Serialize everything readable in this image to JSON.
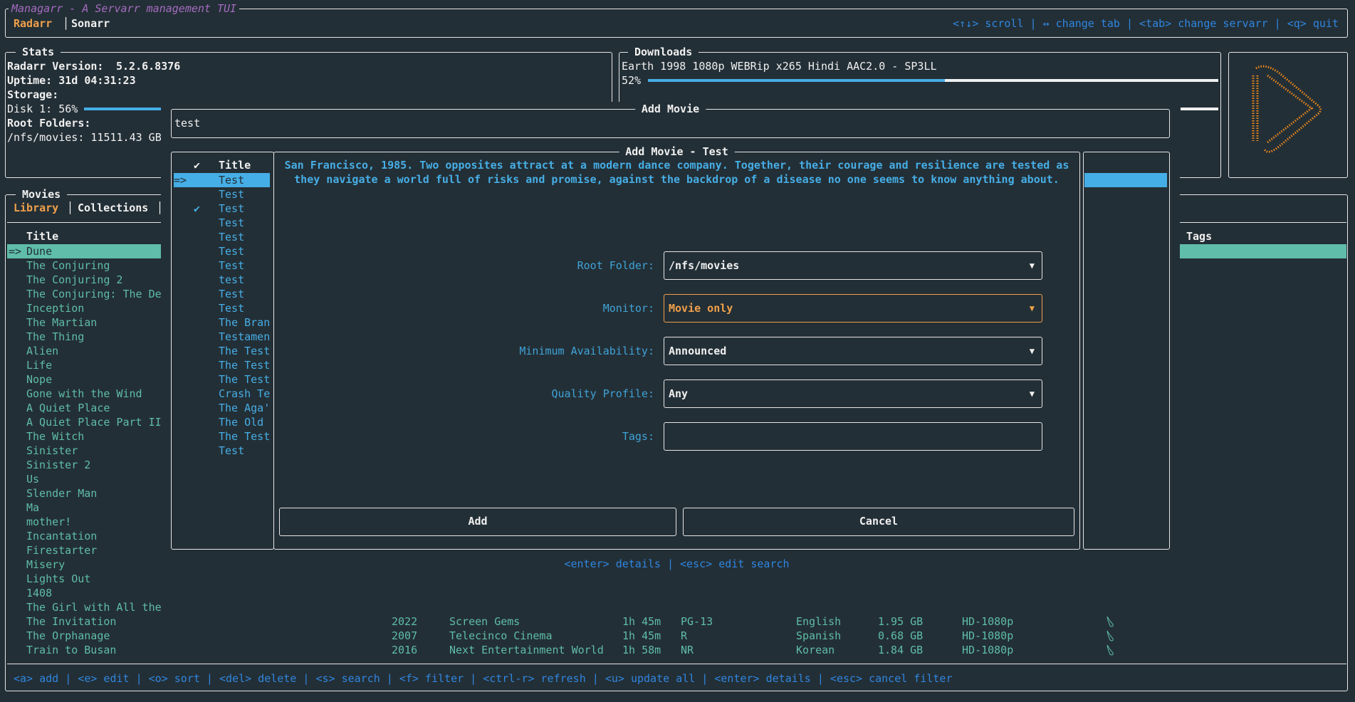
{
  "app": {
    "title": "Managarr - A Servarr management TUI",
    "tabs": [
      "Radarr",
      "Sonarr"
    ],
    "active_tab": "Radarr",
    "help": "<↑↓> scroll | ↔ change tab | <tab> change servarr | <q> quit"
  },
  "colors": {
    "accent": "#f0a04b",
    "teal": "#5fbda9",
    "blue": "#46aee6",
    "title": "#a56cc1",
    "background": "#232f36"
  },
  "stats": {
    "title": "Stats",
    "version_label": "Radarr Version:",
    "version": "5.2.6.8376",
    "uptime": "Uptime: 31d 04:31:23",
    "storage_label": "Storage:",
    "disk": "Disk 1: 56%",
    "disk_percent": 56,
    "root_folders_label": "Root Folders:",
    "root_folder": "/nfs/movies: 11511.43 GB"
  },
  "downloads": {
    "title": "Downloads",
    "items": [
      {
        "name": "Earth 1998 1080p WEBRip x265 Hindi AAC2.0 - SP3LL",
        "percent_label": "52%",
        "percent": 52
      }
    ]
  },
  "movies": {
    "title": "Movies",
    "tabs": [
      "Library",
      "Collections"
    ],
    "active_tab": "Library",
    "columns": {
      "title": "Title",
      "tags": "Tags"
    },
    "selected_marker": "=>",
    "titles": [
      "Dune",
      "The Conjuring",
      "The Conjuring 2",
      "The Conjuring: The De",
      "Inception",
      "The Martian",
      "The Thing",
      "Alien",
      "Life",
      "Nope",
      "Gone with the Wind",
      "A Quiet Place",
      "A Quiet Place Part II",
      "The Witch",
      "Sinister",
      "Sinister 2",
      "Us",
      "Slender Man",
      "Ma",
      "mother!",
      "Incantation",
      "Firestarter",
      "Misery",
      "Lights Out",
      "1408",
      "The Girl with All the",
      "The Invitation",
      "The Orphanage",
      "Train to Busan"
    ],
    "visible_details": [
      {
        "year": "2022",
        "studio": "Screen Gems",
        "runtime": "1h 45m",
        "rating": "PG-13",
        "language": "English",
        "size": "1.95 GB",
        "quality": "HD-1080p",
        "icon": "bookmark-icon"
      },
      {
        "year": "2007",
        "studio": "Telecinco Cinema",
        "runtime": "1h 45m",
        "rating": "R",
        "language": "Spanish",
        "size": "0.68 GB",
        "quality": "HD-1080p",
        "icon": "bookmark-icon"
      },
      {
        "year": "2016",
        "studio": "Next Entertainment World",
        "runtime": "1h 58m",
        "rating": "NR",
        "language": "Korean",
        "size": "1.84 GB",
        "quality": "HD-1080p",
        "icon": "bookmark-icon"
      }
    ],
    "help": "<a> add | <e> edit | <o> sort | <del> delete | <s> search | <f> filter | <ctrl-r> refresh | <u> update all | <enter> details | <esc> cancel filter"
  },
  "search": {
    "title": "Add Movie",
    "value": "test",
    "columns": {
      "check": "✔",
      "title": "Title"
    },
    "selected_marker": "=>",
    "results": [
      {
        "title": "Test",
        "added": false
      },
      {
        "title": "Test",
        "added": false
      },
      {
        "title": "Test",
        "added": true
      },
      {
        "title": "Test",
        "added": false
      },
      {
        "title": "Test",
        "added": false
      },
      {
        "title": "Test",
        "added": false
      },
      {
        "title": "Test",
        "added": false
      },
      {
        "title": "test",
        "added": false
      },
      {
        "title": "Test",
        "added": false
      },
      {
        "title": "Test",
        "added": false
      },
      {
        "title": "The Bran",
        "added": false
      },
      {
        "title": "Testamen",
        "added": false
      },
      {
        "title": "The Test",
        "added": false
      },
      {
        "title": "The Test",
        "added": false
      },
      {
        "title": "The Test",
        "added": false
      },
      {
        "title": "Crash Te",
        "added": false
      },
      {
        "title": "The Aga'",
        "added": false
      },
      {
        "title": "The Old",
        "added": false
      },
      {
        "title": "The Test",
        "added": false
      },
      {
        "title": "Test",
        "added": false
      }
    ],
    "help": "<enter> details | <esc> edit search"
  },
  "modal": {
    "title": "Add Movie - Test",
    "overview_lines": [
      "San Francisco, 1985. Two opposites attract at a modern dance company. Together, their courage and resilience are tested as",
      "they navigate a world full of risks and promise, against the backdrop of a disease no one seems to know anything about."
    ],
    "fields": {
      "root_folder": {
        "label": "Root Folder:",
        "value": "/nfs/movies"
      },
      "monitor": {
        "label": "Monitor:",
        "value": "Movie only"
      },
      "min_availability": {
        "label": "Minimum Availability:",
        "value": "Announced"
      },
      "quality_profile": {
        "label": "Quality Profile:",
        "value": "Any"
      },
      "tags": {
        "label": "Tags:",
        "value": ""
      }
    },
    "dropdown_arrow": "▼",
    "add_label": "Add",
    "cancel_label": "Cancel"
  }
}
